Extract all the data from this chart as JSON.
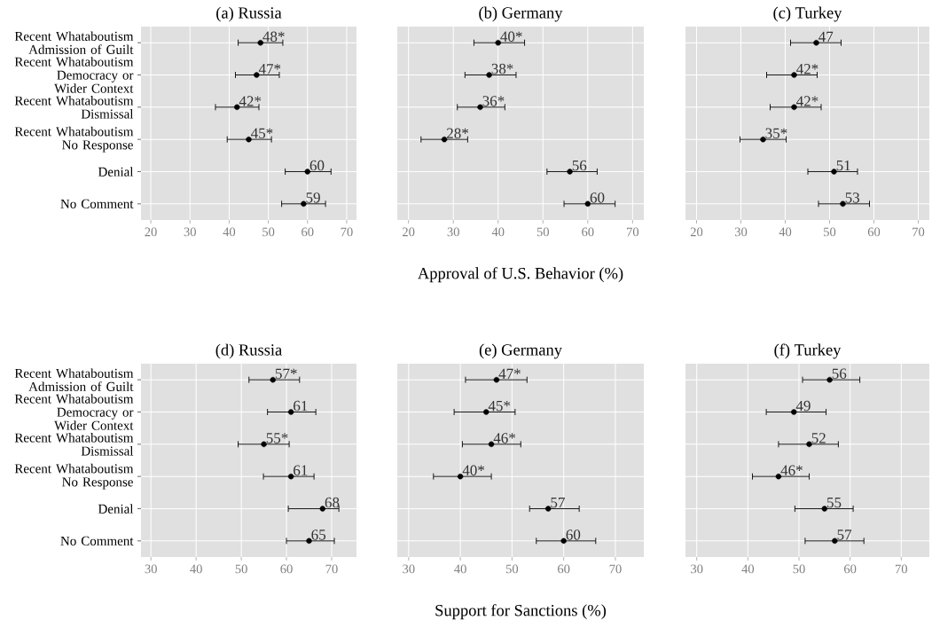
{
  "chart_data": [
    {
      "type": "scatter",
      "orientation": "horizontal",
      "title": "(a) Russia",
      "categories": [
        "Recent Whataboutism Admission of Guilt",
        "Recent Whataboutism Democracy or Wider Context",
        "Recent Whataboutism Dismissal",
        "Recent Whataboutism No Response",
        "Denial",
        "No Comment"
      ],
      "series": [
        {
          "color": "#000000",
          "values": [
            48,
            47,
            42,
            45,
            60,
            59
          ],
          "errors": [
            [
              42.3,
              53.7
            ],
            [
              41.6,
              52.8
            ],
            [
              36.5,
              47.6
            ],
            [
              39.5,
              50.8
            ],
            [
              54.3,
              66.0
            ],
            [
              53.4,
              64.6
            ]
          ],
          "value_labels": [
            "48*",
            "47*",
            "42*",
            "45*",
            "60",
            "59"
          ]
        }
      ],
      "xlim": [
        17.5,
        72.5
      ],
      "xticks": [
        20,
        30,
        40,
        50,
        60,
        70
      ],
      "grid": true,
      "marker": "circle"
    },
    {
      "type": "scatter",
      "orientation": "horizontal",
      "title": "(b) Germany",
      "xlabel": "Approval of U.S. Behavior (%)",
      "categories": [
        null,
        null,
        null,
        null,
        null,
        null
      ],
      "series": [
        {
          "color": "#000000",
          "values": [
            40,
            38,
            36,
            28,
            56,
            60
          ],
          "errors": [
            [
              34.6,
              45.9
            ],
            [
              32.6,
              44.0
            ],
            [
              30.9,
              41.5
            ],
            [
              22.8,
              33.2
            ],
            [
              50.9,
              62.1
            ],
            [
              54.7,
              66.1
            ]
          ],
          "value_labels": [
            "40*",
            "38*",
            "36*",
            "28*",
            "56",
            "60"
          ]
        }
      ],
      "xlim": [
        17.5,
        72.5
      ],
      "xticks": [
        20,
        30,
        40,
        50,
        60,
        70
      ],
      "grid": true,
      "marker": "circle",
      "tick_labels": "x"
    },
    {
      "type": "scatter",
      "orientation": "horizontal",
      "title": "(c) Turkey",
      "categories": [
        null,
        null,
        null,
        null,
        null,
        null
      ],
      "series": [
        {
          "color": "#000000",
          "values": [
            47,
            42,
            42,
            35,
            51,
            53
          ],
          "errors": [
            [
              41.2,
              52.6
            ],
            [
              35.8,
              47.2
            ],
            [
              36.6,
              48.1
            ],
            [
              29.8,
              40.2
            ],
            [
              45.1,
              56.3
            ],
            [
              47.5,
              59.0
            ]
          ],
          "value_labels": [
            "47",
            "42*",
            "42*",
            "35*",
            "51",
            "53"
          ]
        }
      ],
      "xlim": [
        17.5,
        72.5
      ],
      "xticks": [
        20,
        30,
        40,
        50,
        60,
        70
      ],
      "grid": true,
      "marker": "circle",
      "tick_labels": "x"
    },
    {
      "type": "scatter",
      "orientation": "horizontal",
      "title": "(d) Russia",
      "categories": [
        "Recent Whataboutism Admission of Guilt",
        "Recent Whataboutism Democracy or Wider Context",
        "Recent Whataboutism Dismissal",
        "Recent Whataboutism No Response",
        "Denial",
        "No Comment"
      ],
      "series": [
        {
          "color": "#000000",
          "values": [
            57,
            61,
            55,
            61,
            68,
            65
          ],
          "errors": [
            [
              51.7,
              62.9
            ],
            [
              55.8,
              66.5
            ],
            [
              49.3,
              60.6
            ],
            [
              54.9,
              66.1
            ],
            [
              60.4,
              71.6
            ],
            [
              60.0,
              70.6
            ]
          ],
          "value_labels": [
            "57*",
            "61",
            "55*",
            "61",
            "68",
            "65"
          ]
        }
      ],
      "xlim": [
        27.8,
        75.5
      ],
      "xticks": [
        30,
        40,
        50,
        60,
        70
      ],
      "grid": true,
      "marker": "circle"
    },
    {
      "type": "scatter",
      "orientation": "horizontal",
      "title": "(e) Germany",
      "xlabel": "Support for Sanctions (%)",
      "categories": [
        null,
        null,
        null,
        null,
        null,
        null
      ],
      "series": [
        {
          "color": "#000000",
          "values": [
            47,
            45,
            46,
            40,
            57,
            60
          ],
          "errors": [
            [
              41.0,
              52.9
            ],
            [
              38.8,
              50.6
            ],
            [
              40.4,
              51.7
            ],
            [
              34.8,
              46.0
            ],
            [
              53.4,
              63.0
            ],
            [
              54.7,
              66.2
            ]
          ],
          "value_labels": [
            "47*",
            "45*",
            "46*",
            "40*",
            "57",
            "60"
          ]
        }
      ],
      "xlim": [
        27.8,
        75.5
      ],
      "xticks": [
        30,
        40,
        50,
        60,
        70
      ],
      "grid": true,
      "marker": "circle",
      "tick_labels": "x"
    },
    {
      "type": "scatter",
      "orientation": "horizontal",
      "title": "(f) Turkey",
      "categories": [
        null,
        null,
        null,
        null,
        null,
        null
      ],
      "series": [
        {
          "color": "#000000",
          "values": [
            56,
            49,
            52,
            46,
            55,
            57
          ],
          "errors": [
            [
              50.7,
              61.9
            ],
            [
              43.6,
              55.3
            ],
            [
              46.0,
              57.7
            ],
            [
              40.9,
              52.0
            ],
            [
              49.2,
              60.6
            ],
            [
              51.2,
              62.7
            ]
          ],
          "value_labels": [
            "56",
            "49",
            "52",
            "46*",
            "55",
            "57"
          ]
        }
      ],
      "xlim": [
        27.8,
        75.5
      ],
      "xticks": [
        30,
        40,
        50,
        60,
        70
      ],
      "grid": true,
      "marker": "circle",
      "tick_labels": "x"
    }
  ]
}
